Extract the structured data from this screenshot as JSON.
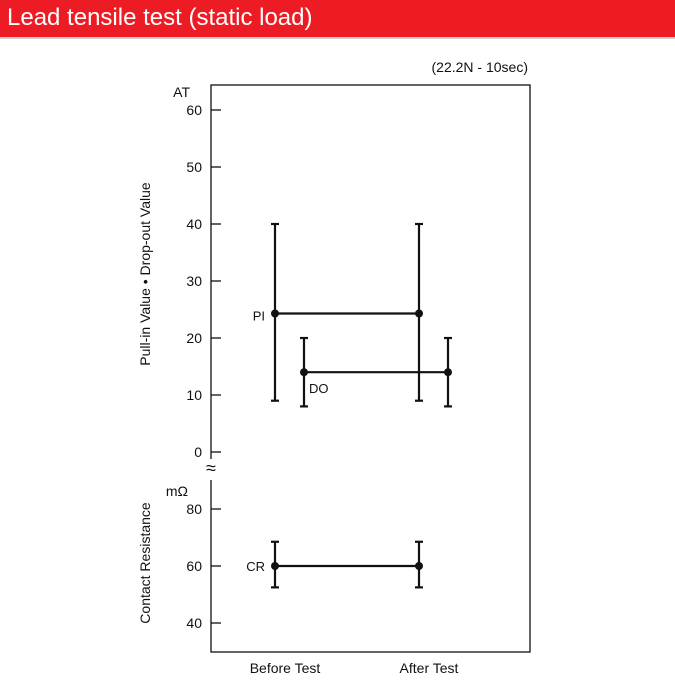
{
  "header": {
    "title": "Lead tensile test (static load)"
  },
  "chart_data": {
    "type": "scatter",
    "test_condition": "(22.2N - 10sec)",
    "categories": [
      "Before Test",
      "After Test"
    ],
    "upper_panel": {
      "ylabel": "Pull-in Value • Drop-out Value",
      "unit": "AT",
      "ylim": [
        0,
        60
      ],
      "ticks": [
        0,
        10,
        20,
        30,
        40,
        50,
        60
      ],
      "series": [
        {
          "name": "PI",
          "points": [
            {
              "x": "Before Test",
              "mean": 24.3,
              "min": 9,
              "max": 40
            },
            {
              "x": "After Test",
              "mean": 24.3,
              "min": 9,
              "max": 40
            }
          ]
        },
        {
          "name": "DO",
          "points": [
            {
              "x": "Before Test",
              "mean": 14,
              "min": 8,
              "max": 20
            },
            {
              "x": "After Test",
              "mean": 14,
              "min": 8,
              "max": 20
            }
          ]
        }
      ]
    },
    "lower_panel": {
      "ylabel": "Contact Resistance",
      "unit": "mΩ",
      "ylim": [
        37,
        90
      ],
      "ticks": [
        40,
        60,
        80
      ],
      "series": [
        {
          "name": "CR",
          "points": [
            {
              "x": "Before Test",
              "mean": 60,
              "min": 52.5,
              "max": 68.5
            },
            {
              "x": "After Test",
              "mean": 60,
              "min": 52.5,
              "max": 68.5
            }
          ]
        }
      ]
    },
    "axis_break_symbol": "≈",
    "grid": false,
    "colors": {
      "header": "#ed1c24",
      "marks": "#111111"
    }
  }
}
